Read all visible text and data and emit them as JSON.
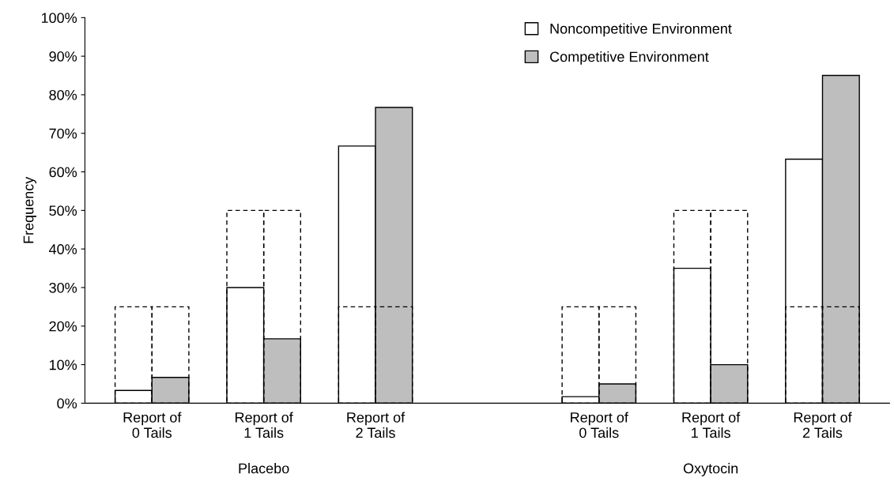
{
  "chart_data": {
    "type": "bar",
    "ylabel": "Frequency",
    "categories": [
      "Report of\n0 Tails",
      "Report of\n1 Tails",
      "Report of\n2 Tails",
      null,
      "Report of\n0 Tails",
      "Report of\n1 Tails",
      "Report of\n2 Tails"
    ],
    "series": [
      {
        "name": "Noncompetitive Environment",
        "color": "#ffffff",
        "values": [
          3.3,
          30,
          66.7,
          null,
          1.7,
          35,
          63.3
        ]
      },
      {
        "name": "Competitive Environment",
        "color": "#bebebe",
        "values": [
          6.7,
          16.7,
          76.7,
          null,
          5,
          10,
          85
        ]
      },
      {
        "color": "#000000",
        "line_style": "dashed",
        "values": [
          25,
          50,
          25,
          null,
          25,
          50,
          25
        ]
      },
      {
        "color": "#000000",
        "line_style": "dashed",
        "values": [
          25,
          50,
          25,
          null,
          25,
          50,
          25
        ]
      }
    ],
    "ylim": [
      0,
      100
    ],
    "yticks": [
      {
        "value": 0,
        "label": "0%"
      },
      {
        "value": 10,
        "label": "10%"
      },
      {
        "value": 20,
        "label": "20%"
      },
      {
        "value": 30,
        "label": "30%"
      },
      {
        "value": 40,
        "label": "40%"
      },
      {
        "value": 50,
        "label": "50%"
      },
      {
        "value": 60,
        "label": "60%"
      },
      {
        "value": 70,
        "label": "70%"
      },
      {
        "value": 80,
        "label": "80%"
      },
      {
        "value": 90,
        "label": "90%"
      },
      {
        "value": 100,
        "label": "100%"
      }
    ],
    "annotations": [
      "Placebo",
      "Oxytocin"
    ],
    "legend": "top right",
    "grid": false
  }
}
